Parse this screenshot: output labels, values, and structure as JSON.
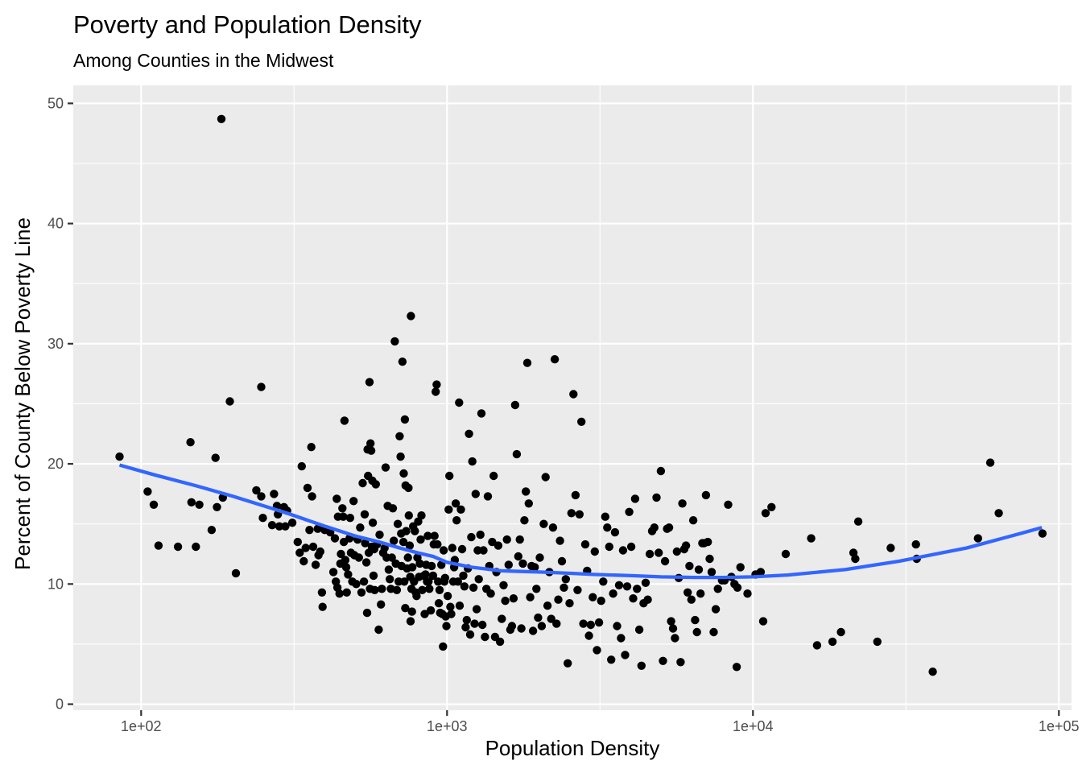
{
  "chart_data": {
    "type": "scatter",
    "title": "Poverty and Population Density",
    "subtitle": "Among Counties in the Midwest",
    "xlabel": "Population Density",
    "ylabel": "Percent of County Below Poverty Line",
    "x_scale": "log10",
    "xlim": [
      60,
      110000
    ],
    "ylim": [
      -0.5,
      51.5
    ],
    "x_ticks": [
      100,
      1000,
      10000,
      100000
    ],
    "x_tick_labels": [
      "1e+02",
      "1e+03",
      "1e+04",
      "1e+05"
    ],
    "y_ticks": [
      0,
      10,
      20,
      30,
      40,
      50
    ],
    "y_tick_labels": [
      "0",
      "10",
      "20",
      "30",
      "40",
      "50"
    ],
    "grid": true,
    "background": "#ebebeb",
    "point_color": "#000000",
    "smooth_color": "#3366ff",
    "points": [
      [
        85,
        20.6
      ],
      [
        105,
        17.7
      ],
      [
        110,
        16.6
      ],
      [
        114,
        13.2
      ],
      [
        132,
        13.1
      ],
      [
        145,
        21.8
      ],
      [
        146,
        16.8
      ],
      [
        151,
        13.1
      ],
      [
        155,
        16.6
      ],
      [
        170,
        14.5
      ],
      [
        175,
        20.5
      ],
      [
        177,
        16.4
      ],
      [
        183,
        48.7
      ],
      [
        185,
        17.2
      ],
      [
        195,
        25.2
      ],
      [
        204,
        10.9
      ],
      [
        238,
        17.8
      ],
      [
        247,
        26.4
      ],
      [
        247,
        17.3
      ],
      [
        250,
        15.5
      ],
      [
        268,
        14.9
      ],
      [
        272,
        17.5
      ],
      [
        278,
        16.5
      ],
      [
        280,
        15.8
      ],
      [
        283,
        14.8
      ],
      [
        293,
        16.4
      ],
      [
        296,
        14.8
      ],
      [
        300,
        16.1
      ],
      [
        312,
        15.1
      ],
      [
        325,
        13.5
      ],
      [
        330,
        12.6
      ],
      [
        335,
        19.8
      ],
      [
        340,
        11.9
      ],
      [
        345,
        13.0
      ],
      [
        350,
        18.0
      ],
      [
        355,
        14.5
      ],
      [
        360,
        21.4
      ],
      [
        362,
        17.3
      ],
      [
        365,
        13.1
      ],
      [
        372,
        11.6
      ],
      [
        378,
        14.6
      ],
      [
        380,
        12.4
      ],
      [
        385,
        12.7
      ],
      [
        390,
        9.3
      ],
      [
        392,
        8.1
      ],
      [
        398,
        14.5
      ],
      [
        415,
        14.3
      ],
      [
        425,
        11.0
      ],
      [
        430,
        13.8
      ],
      [
        433,
        10.2
      ],
      [
        436,
        17.1
      ],
      [
        438,
        9.7
      ],
      [
        440,
        15.6
      ],
      [
        445,
        9.2
      ],
      [
        448,
        11.7
      ],
      [
        450,
        12.5
      ],
      [
        455,
        16.3
      ],
      [
        458,
        15.6
      ],
      [
        460,
        13.5
      ],
      [
        462,
        23.6
      ],
      [
        465,
        12.0
      ],
      [
        468,
        11.4
      ],
      [
        470,
        9.3
      ],
      [
        475,
        10.8
      ],
      [
        480,
        13.8
      ],
      [
        482,
        15.5
      ],
      [
        485,
        12.6
      ],
      [
        490,
        10.2
      ],
      [
        495,
        16.9
      ],
      [
        498,
        12.4
      ],
      [
        505,
        10.0
      ],
      [
        510,
        13.7
      ],
      [
        515,
        12.2
      ],
      [
        520,
        14.7
      ],
      [
        525,
        9.3
      ],
      [
        530,
        18.4
      ],
      [
        535,
        10.2
      ],
      [
        538,
        15.8
      ],
      [
        540,
        13.4
      ],
      [
        545,
        11.8
      ],
      [
        548,
        7.6
      ],
      [
        550,
        21.2
      ],
      [
        552,
        19.0
      ],
      [
        555,
        12.6
      ],
      [
        558,
        26.8
      ],
      [
        560,
        9.6
      ],
      [
        562,
        21.7
      ],
      [
        565,
        21.1
      ],
      [
        568,
        13.1
      ],
      [
        570,
        18.6
      ],
      [
        572,
        15.1
      ],
      [
        575,
        10.7
      ],
      [
        578,
        12.9
      ],
      [
        580,
        9.5
      ],
      [
        585,
        18.3
      ],
      [
        590,
        13.3
      ],
      [
        598,
        6.2
      ],
      [
        602,
        14.1
      ],
      [
        608,
        8.3
      ],
      [
        612,
        9.6
      ],
      [
        618,
        12.6
      ],
      [
        625,
        13.0
      ],
      [
        630,
        19.7
      ],
      [
        635,
        12.2
      ],
      [
        640,
        16.5
      ],
      [
        645,
        11.2
      ],
      [
        650,
        10.4
      ],
      [
        655,
        9.6
      ],
      [
        660,
        12.2
      ],
      [
        665,
        16.3
      ],
      [
        670,
        13.6
      ],
      [
        675,
        30.2
      ],
      [
        680,
        11.7
      ],
      [
        685,
        9.5
      ],
      [
        690,
        15.0
      ],
      [
        695,
        10.2
      ],
      [
        700,
        22.3
      ],
      [
        705,
        20.6
      ],
      [
        708,
        14.2
      ],
      [
        710,
        11.5
      ],
      [
        715,
        28.5
      ],
      [
        720,
        13.5
      ],
      [
        722,
        19.2
      ],
      [
        725,
        10.2
      ],
      [
        728,
        23.7
      ],
      [
        730,
        8.0
      ],
      [
        732,
        18.2
      ],
      [
        735,
        14.4
      ],
      [
        740,
        11.3
      ],
      [
        745,
        12.2
      ],
      [
        748,
        18.0
      ],
      [
        750,
        15.7
      ],
      [
        755,
        13.2
      ],
      [
        758,
        10.6
      ],
      [
        760,
        6.9
      ],
      [
        762,
        32.3
      ],
      [
        765,
        9.6
      ],
      [
        768,
        7.7
      ],
      [
        770,
        11.4
      ],
      [
        775,
        14.8
      ],
      [
        780,
        10.2
      ],
      [
        785,
        14.4
      ],
      [
        790,
        9.3
      ],
      [
        795,
        9.0
      ],
      [
        800,
        12.2
      ],
      [
        805,
        15.2
      ],
      [
        810,
        10.6
      ],
      [
        815,
        11.7
      ],
      [
        820,
        13.7
      ],
      [
        825,
        15.7
      ],
      [
        830,
        9.5
      ],
      [
        840,
        10.7
      ],
      [
        845,
        7.5
      ],
      [
        850,
        10.8
      ],
      [
        855,
        11.6
      ],
      [
        860,
        10.2
      ],
      [
        865,
        14.0
      ],
      [
        870,
        10.2
      ],
      [
        875,
        9.6
      ],
      [
        885,
        7.8
      ],
      [
        890,
        11.5
      ],
      [
        900,
        10.7
      ],
      [
        905,
        13.3
      ],
      [
        910,
        14.0
      ],
      [
        918,
        26.0
      ],
      [
        925,
        26.6
      ],
      [
        930,
        13.3
      ],
      [
        935,
        10.2
      ],
      [
        940,
        8.4
      ],
      [
        945,
        9.5
      ],
      [
        950,
        7.6
      ],
      [
        958,
        11.6
      ],
      [
        965,
        7.5
      ],
      [
        970,
        4.8
      ],
      [
        975,
        12.8
      ],
      [
        980,
        10.2
      ],
      [
        985,
        10.5
      ],
      [
        990,
        7.3
      ],
      [
        995,
        6.5
      ],
      [
        1005,
        9.0
      ],
      [
        1012,
        16.2
      ],
      [
        1018,
        19.0
      ],
      [
        1025,
        8.1
      ],
      [
        1032,
        7.5
      ],
      [
        1040,
        13.0
      ],
      [
        1048,
        10.2
      ],
      [
        1055,
        11.4
      ],
      [
        1060,
        12.0
      ],
      [
        1068,
        16.7
      ],
      [
        1075,
        15.3
      ],
      [
        1085,
        10.2
      ],
      [
        1095,
        25.1
      ],
      [
        1100,
        8.2
      ],
      [
        1110,
        16.2
      ],
      [
        1120,
        12.9
      ],
      [
        1130,
        10.7
      ],
      [
        1140,
        9.8
      ],
      [
        1150,
        6.4
      ],
      [
        1160,
        7.0
      ],
      [
        1170,
        11.3
      ],
      [
        1180,
        22.5
      ],
      [
        1190,
        5.8
      ],
      [
        1200,
        13.9
      ],
      [
        1210,
        20.2
      ],
      [
        1220,
        9.7
      ],
      [
        1230,
        6.7
      ],
      [
        1240,
        17.5
      ],
      [
        1250,
        7.9
      ],
      [
        1260,
        12.8
      ],
      [
        1270,
        10.4
      ],
      [
        1285,
        14.1
      ],
      [
        1295,
        24.2
      ],
      [
        1305,
        6.6
      ],
      [
        1315,
        12.8
      ],
      [
        1330,
        5.6
      ],
      [
        1345,
        9.6
      ],
      [
        1360,
        17.3
      ],
      [
        1375,
        11.5
      ],
      [
        1390,
        9.2
      ],
      [
        1405,
        13.5
      ],
      [
        1420,
        19.0
      ],
      [
        1435,
        5.6
      ],
      [
        1450,
        11.0
      ],
      [
        1470,
        13.2
      ],
      [
        1490,
        5.2
      ],
      [
        1510,
        7.1
      ],
      [
        1530,
        9.9
      ],
      [
        1550,
        8.6
      ],
      [
        1570,
        13.7
      ],
      [
        1590,
        11.6
      ],
      [
        1610,
        6.2
      ],
      [
        1630,
        6.5
      ],
      [
        1650,
        8.8
      ],
      [
        1670,
        24.9
      ],
      [
        1690,
        20.8
      ],
      [
        1710,
        12.3
      ],
      [
        1730,
        13.7
      ],
      [
        1750,
        6.3
      ],
      [
        1770,
        11.7
      ],
      [
        1790,
        15.3
      ],
      [
        1810,
        17.7
      ],
      [
        1830,
        28.4
      ],
      [
        1850,
        16.7
      ],
      [
        1870,
        8.9
      ],
      [
        1890,
        11.5
      ],
      [
        1910,
        6.1
      ],
      [
        1935,
        11.4
      ],
      [
        1960,
        9.6
      ],
      [
        1985,
        7.2
      ],
      [
        2010,
        12.2
      ],
      [
        2040,
        6.5
      ],
      [
        2070,
        15.0
      ],
      [
        2100,
        18.9
      ],
      [
        2130,
        8.2
      ],
      [
        2160,
        11.0
      ],
      [
        2190,
        7.1
      ],
      [
        2220,
        14.7
      ],
      [
        2250,
        28.7
      ],
      [
        2280,
        6.7
      ],
      [
        2310,
        8.7
      ],
      [
        2340,
        13.6
      ],
      [
        2375,
        11.9
      ],
      [
        2410,
        9.7
      ],
      [
        2445,
        10.4
      ],
      [
        2480,
        3.4
      ],
      [
        2515,
        8.4
      ],
      [
        2550,
        15.9
      ],
      [
        2590,
        25.8
      ],
      [
        2630,
        17.4
      ],
      [
        2670,
        9.5
      ],
      [
        2710,
        15.8
      ],
      [
        2750,
        23.5
      ],
      [
        2790,
        6.7
      ],
      [
        2830,
        13.3
      ],
      [
        2870,
        11.1
      ],
      [
        2910,
        5.7
      ],
      [
        2950,
        6.6
      ],
      [
        2995,
        8.9
      ],
      [
        3040,
        12.7
      ],
      [
        3090,
        4.5
      ],
      [
        3140,
        6.8
      ],
      [
        3190,
        8.6
      ],
      [
        3240,
        10.2
      ],
      [
        3290,
        15.6
      ],
      [
        3340,
        14.7
      ],
      [
        3390,
        13.1
      ],
      [
        3440,
        3.7
      ],
      [
        3490,
        9.2
      ],
      [
        3540,
        14.3
      ],
      [
        3595,
        6.5
      ],
      [
        3650,
        9.9
      ],
      [
        3705,
        5.5
      ],
      [
        3760,
        12.8
      ],
      [
        3820,
        4.1
      ],
      [
        3880,
        9.8
      ],
      [
        3940,
        16.0
      ],
      [
        4000,
        13.1
      ],
      [
        4060,
        8.8
      ],
      [
        4120,
        17.1
      ],
      [
        4180,
        9.6
      ],
      [
        4250,
        6.2
      ],
      [
        4320,
        3.2
      ],
      [
        4390,
        8.4
      ],
      [
        4460,
        10.1
      ],
      [
        4530,
        8.7
      ],
      [
        4600,
        12.5
      ],
      [
        4680,
        14.4
      ],
      [
        4760,
        14.7
      ],
      [
        4840,
        17.2
      ],
      [
        4920,
        12.6
      ],
      [
        5000,
        19.4
      ],
      [
        5080,
        3.6
      ],
      [
        5160,
        11.9
      ],
      [
        5240,
        14.6
      ],
      [
        5320,
        14.7
      ],
      [
        5400,
        6.9
      ],
      [
        5480,
        6.3
      ],
      [
        5560,
        5.5
      ],
      [
        5640,
        12.7
      ],
      [
        5720,
        10.5
      ],
      [
        5800,
        3.5
      ],
      [
        5880,
        16.7
      ],
      [
        5960,
        12.9
      ],
      [
        6040,
        13.2
      ],
      [
        6120,
        9.3
      ],
      [
        6200,
        11.5
      ],
      [
        6290,
        8.7
      ],
      [
        6380,
        15.3
      ],
      [
        6470,
        7.0
      ],
      [
        6560,
        6.0
      ],
      [
        6650,
        11.2
      ],
      [
        6740,
        9.2
      ],
      [
        6830,
        13.4
      ],
      [
        6920,
        13.4
      ],
      [
        7020,
        17.4
      ],
      [
        7120,
        13.5
      ],
      [
        7220,
        12.1
      ],
      [
        7330,
        11.0
      ],
      [
        7440,
        6.0
      ],
      [
        7560,
        7.9
      ],
      [
        7680,
        9.6
      ],
      [
        7920,
        10.3
      ],
      [
        8080,
        10.3
      ],
      [
        8300,
        16.6
      ],
      [
        8500,
        10.6
      ],
      [
        8700,
        10.0
      ],
      [
        8850,
        3.1
      ],
      [
        8900,
        9.7
      ],
      [
        9100,
        11.4
      ],
      [
        9600,
        9.2
      ],
      [
        10200,
        10.8
      ],
      [
        10600,
        11.0
      ],
      [
        10800,
        6.9
      ],
      [
        11000,
        15.9
      ],
      [
        11500,
        16.4
      ],
      [
        12800,
        12.5
      ],
      [
        15500,
        13.8
      ],
      [
        16200,
        4.9
      ],
      [
        18200,
        5.2
      ],
      [
        19400,
        6.0
      ],
      [
        21300,
        12.6
      ],
      [
        21600,
        12.1
      ],
      [
        22100,
        15.2
      ],
      [
        25500,
        5.2
      ],
      [
        28200,
        13.0
      ],
      [
        34100,
        13.3
      ],
      [
        34300,
        12.1
      ],
      [
        38700,
        2.7
      ],
      [
        54400,
        13.8
      ],
      [
        59700,
        20.1
      ],
      [
        63600,
        15.9
      ],
      [
        88400,
        14.2
      ]
    ],
    "smooth_line": [
      [
        85,
        19.9
      ],
      [
        110,
        19.1
      ],
      [
        150,
        18.2
      ],
      [
        200,
        17.3
      ],
      [
        300,
        15.9
      ],
      [
        400,
        14.8
      ],
      [
        500,
        14.0
      ],
      [
        600,
        13.5
      ],
      [
        700,
        13.0
      ],
      [
        800,
        12.6
      ],
      [
        900,
        12.3
      ],
      [
        1000,
        11.8
      ],
      [
        1200,
        11.4
      ],
      [
        1500,
        11.1
      ],
      [
        2000,
        11.0
      ],
      [
        2500,
        10.9
      ],
      [
        3000,
        10.8
      ],
      [
        4000,
        10.7
      ],
      [
        5000,
        10.6
      ],
      [
        6500,
        10.55
      ],
      [
        8000,
        10.55
      ],
      [
        10000,
        10.6
      ],
      [
        13000,
        10.75
      ],
      [
        20000,
        11.2
      ],
      [
        30000,
        11.9
      ],
      [
        50000,
        13.0
      ],
      [
        70000,
        14.0
      ],
      [
        88000,
        14.7
      ]
    ]
  }
}
